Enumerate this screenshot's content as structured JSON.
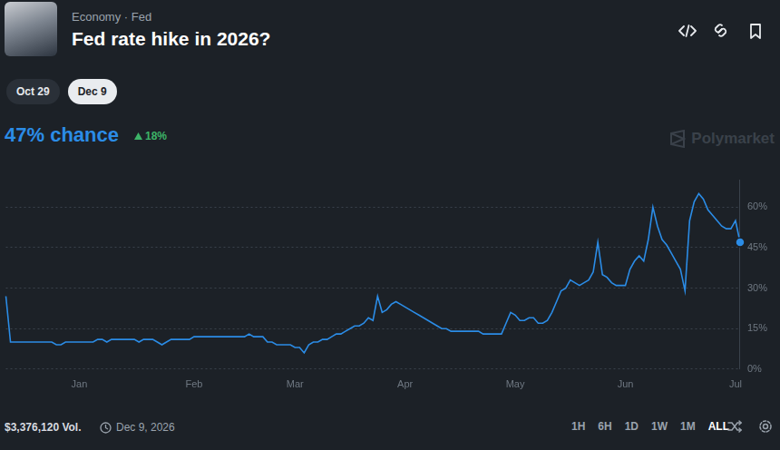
{
  "header": {
    "breadcrumb": "Economy · Fed",
    "question": "Fed rate hike in 2026?",
    "tabs": [
      "Oct 29",
      "Dec 9"
    ],
    "selected_tab": "Dec 9",
    "chance": "47% chance",
    "change": "18%",
    "watermark": "Polymarket"
  },
  "chart_data": {
    "type": "line",
    "categories": [
      null,
      null,
      null,
      null,
      null,
      null,
      null,
      null,
      null,
      null,
      null,
      null,
      null,
      null,
      null,
      null,
      "Jan",
      null,
      null,
      null,
      null,
      null,
      null,
      null,
      null,
      null,
      null,
      null,
      null,
      null,
      null,
      null,
      null,
      null,
      null,
      null,
      null,
      null,
      null,
      null,
      null,
      "Feb",
      null,
      null,
      null,
      null,
      null,
      null,
      null,
      null,
      null,
      null,
      null,
      null,
      null,
      null,
      null,
      null,
      null,
      null,
      null,
      null,
      null,
      "Mar",
      null,
      null,
      null,
      null,
      null,
      null,
      null,
      null,
      null,
      null,
      null,
      null,
      null,
      null,
      null,
      null,
      null,
      null,
      null,
      null,
      null,
      null,
      null,
      "Apr",
      null,
      null,
      null,
      null,
      null,
      null,
      null,
      null,
      null,
      null,
      null,
      null,
      null,
      null,
      null,
      null,
      null,
      null,
      null,
      null,
      null,
      null,
      null,
      "May",
      null,
      null,
      null,
      null,
      null,
      null,
      null,
      null,
      null,
      null,
      null,
      null,
      null,
      null,
      null,
      null,
      null,
      null,
      null,
      null,
      null,
      null,
      null,
      "Jun",
      null,
      null,
      null,
      null,
      null,
      null,
      null,
      null,
      null,
      null,
      null,
      null,
      null,
      null,
      null,
      null,
      null,
      null,
      null,
      null,
      null,
      null,
      null,
      "Jul",
      null
    ],
    "values": [
      27,
      10,
      10,
      10,
      10,
      10,
      10,
      10,
      10,
      10,
      10,
      9,
      9,
      10,
      10,
      10,
      10,
      10,
      10,
      10,
      11,
      11,
      10,
      11,
      11,
      11,
      11,
      11,
      11,
      10,
      11,
      11,
      11,
      10,
      9,
      10,
      11,
      11,
      11,
      11,
      11,
      12,
      12,
      12,
      12,
      12,
      12,
      12,
      12,
      12,
      12,
      12,
      12,
      13,
      12,
      12,
      12,
      10,
      10,
      9,
      9,
      9,
      9,
      8,
      8,
      6,
      9,
      10,
      10,
      11,
      11,
      12,
      13,
      13,
      14,
      15,
      16,
      16,
      17,
      19,
      18,
      27,
      21,
      22,
      24,
      25,
      24,
      23,
      22,
      21,
      20,
      19,
      18,
      17,
      16,
      15,
      15,
      14,
      14,
      14,
      14,
      14,
      14,
      14,
      13,
      13,
      13,
      13,
      13,
      17,
      21,
      20,
      18,
      18,
      19,
      19,
      17,
      17,
      18,
      21,
      25,
      29,
      30,
      33,
      32,
      31,
      32,
      33,
      36,
      47,
      35,
      34,
      32,
      31,
      31,
      31,
      37,
      40,
      42,
      40,
      48,
      60,
      53,
      48,
      46,
      43,
      40,
      37,
      29,
      55,
      62,
      65,
      63,
      59,
      57,
      55,
      53,
      52,
      52,
      55,
      47
    ],
    "color": "#2b8ce6",
    "marker": "end",
    "ylim": [
      0,
      70
    ],
    "yticks": [
      {
        "value": 0,
        "label": "0%"
      },
      {
        "value": 15,
        "label": "15%"
      },
      {
        "value": 30,
        "label": "30%"
      },
      {
        "value": 45,
        "label": "45%"
      },
      {
        "value": 60,
        "label": "60%"
      }
    ],
    "grid": true
  },
  "footer": {
    "volume": "$3,376,120 Vol.",
    "end_date": "Dec 9, 2026",
    "timeframes": [
      "1H",
      "6H",
      "1D",
      "1W",
      "1M",
      "ALL"
    ],
    "selected_timeframe": "ALL"
  }
}
